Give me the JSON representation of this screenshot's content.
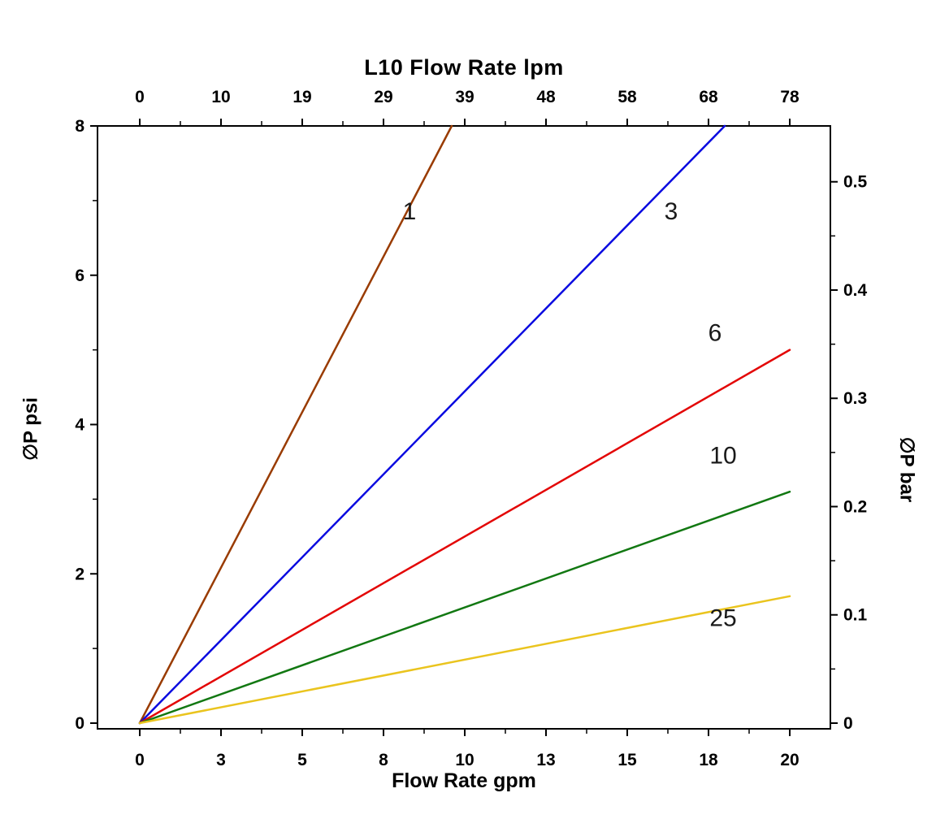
{
  "chart_data": {
    "type": "line",
    "title": "L10 Flow Rate lpm",
    "xlim": [
      0,
      20
    ],
    "ylim": [
      0,
      8
    ],
    "grid": false,
    "legend_position": "inline-labels",
    "top_axis": {
      "tick_labels": [
        "0",
        "10",
        "19",
        "29",
        "39",
        "48",
        "58",
        "68",
        "78"
      ],
      "tick_positions_gpm": [
        0,
        2.5,
        5,
        7.5,
        10,
        12.5,
        15,
        17.5,
        20
      ]
    },
    "bottom_axis": {
      "label": "Flow Rate gpm",
      "tick_labels": [
        "0",
        "3",
        "5",
        "8",
        "10",
        "13",
        "15",
        "18",
        "20"
      ],
      "tick_positions_gpm": [
        0,
        2.5,
        5,
        7.5,
        10,
        12.5,
        15,
        17.5,
        20
      ],
      "range": [
        0,
        20
      ]
    },
    "left_axis": {
      "label": "∅P psi",
      "tick_labels": [
        "0",
        "2",
        "4",
        "6",
        "8"
      ],
      "tick_values": [
        0,
        2,
        4,
        6,
        8
      ],
      "range": [
        0,
        8
      ]
    },
    "right_axis": {
      "label": "∅P bar",
      "tick_labels": [
        "0",
        "0.1",
        "0.2",
        "0.3",
        "0.4",
        "0.5"
      ],
      "tick_values_bar": [
        0,
        0.1,
        0.2,
        0.3,
        0.4,
        0.5
      ]
    },
    "series": [
      {
        "name": "1",
        "color": "#993B00",
        "points": [
          [
            0,
            0
          ],
          [
            9.6,
            8
          ]
        ],
        "label_pos": [
          8.3,
          6.75
        ]
      },
      {
        "name": "3",
        "color": "#0A0AE0",
        "points": [
          [
            0,
            0
          ],
          [
            18,
            8
          ]
        ],
        "label_pos": [
          16.35,
          6.75
        ]
      },
      {
        "name": "6",
        "color": "#E30505",
        "points": [
          [
            0,
            0
          ],
          [
            20,
            5.0
          ]
        ],
        "label_pos": [
          17.7,
          5.12
        ]
      },
      {
        "name": "10",
        "color": "#127812",
        "points": [
          [
            0,
            0
          ],
          [
            20,
            3.1
          ]
        ],
        "label_pos": [
          17.95,
          3.48
        ]
      },
      {
        "name": "25",
        "color": "#EAC41E",
        "points": [
          [
            0,
            0
          ],
          [
            20,
            1.7
          ]
        ],
        "label_pos": [
          17.95,
          1.3
        ]
      }
    ]
  }
}
